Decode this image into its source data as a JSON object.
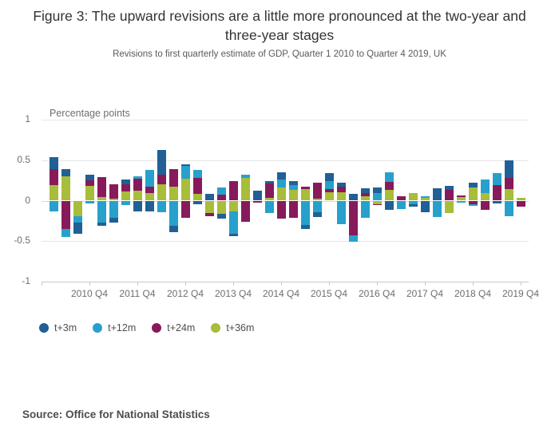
{
  "header": {
    "title": "Figure 3: The upward revisions are a little more pronounced at the two-year and three-year stages",
    "subtitle": "Revisions to first quarterly estimate of GDP, Quarter 1 2010 to Quarter 4 2019, UK"
  },
  "footer": {
    "source": "Source: Office for National Statistics"
  },
  "chart_data": {
    "type": "bar",
    "stacked": true,
    "title": "Figure 3: The upward revisions are a little more pronounced at the two-year and three-year stages",
    "subtitle": "Revisions to first quarterly estimate of GDP, Quarter 1 2010 to Quarter 4 2019, UK",
    "axis_title": "Percentage points",
    "xlabel": "",
    "ylabel": "Percentage points",
    "ylim": [
      -1,
      1
    ],
    "grid": true,
    "legend_position": "bottom-left",
    "stack_order_from_axis": [
      "t+36m",
      "t+24m",
      "t+12m",
      "t+3m"
    ],
    "y_ticks": [
      {
        "label": "1",
        "value": 1
      },
      {
        "label": "0.5",
        "value": 0.5
      },
      {
        "label": "0",
        "value": 0
      },
      {
        "label": "-0.5",
        "value": -0.5
      },
      {
        "label": "-1",
        "value": -1
      }
    ],
    "x_ticks": [
      {
        "label": "2010 Q4",
        "index": 3
      },
      {
        "label": "2011 Q4",
        "index": 7
      },
      {
        "label": "2012 Q4",
        "index": 11
      },
      {
        "label": "2013 Q4",
        "index": 15
      },
      {
        "label": "2014 Q4",
        "index": 19
      },
      {
        "label": "2015 Q4",
        "index": 23
      },
      {
        "label": "2016 Q4",
        "index": 27
      },
      {
        "label": "2017 Q4",
        "index": 31
      },
      {
        "label": "2018 Q4",
        "index": 35
      },
      {
        "label": "2019 Q4",
        "index": 39
      }
    ],
    "categories": [
      "2010 Q1",
      "2010 Q2",
      "2010 Q3",
      "2010 Q4",
      "2011 Q1",
      "2011 Q2",
      "2011 Q3",
      "2011 Q4",
      "2012 Q1",
      "2012 Q2",
      "2012 Q3",
      "2012 Q4",
      "2013 Q1",
      "2013 Q2",
      "2013 Q3",
      "2013 Q4",
      "2014 Q1",
      "2014 Q2",
      "2014 Q3",
      "2014 Q4",
      "2015 Q1",
      "2015 Q2",
      "2015 Q3",
      "2015 Q4",
      "2016 Q1",
      "2016 Q2",
      "2016 Q3",
      "2016 Q4",
      "2017 Q1",
      "2017 Q2",
      "2017 Q3",
      "2017 Q4",
      "2018 Q1",
      "2018 Q2",
      "2018 Q3",
      "2018 Q4",
      "2019 Q1",
      "2019 Q2",
      "2019 Q3",
      "2019 Q4"
    ],
    "series": [
      {
        "name": "t+3m",
        "color": "#206095",
        "values": [
          0.15,
          0.09,
          -0.14,
          0.07,
          -0.04,
          -0.06,
          0.06,
          -0.13,
          -0.13,
          0.31,
          -0.08,
          0.02,
          -0.04,
          0.08,
          -0.06,
          -0.03,
          0.0,
          0.12,
          0.03,
          0.09,
          0.05,
          -0.05,
          -0.06,
          0.1,
          0.05,
          0.08,
          0.06,
          0.07,
          -0.11,
          0.0,
          -0.03,
          -0.14,
          0.15,
          0.05,
          0.0,
          0.06,
          0.0,
          -0.03,
          0.22,
          0.0
        ]
      },
      {
        "name": "t+12m",
        "color": "#27a0cc",
        "values": [
          -0.13,
          -0.1,
          -0.08,
          -0.03,
          -0.27,
          -0.21,
          -0.05,
          0.03,
          0.21,
          -0.14,
          -0.31,
          0.16,
          0.1,
          0.0,
          0.09,
          -0.28,
          0.04,
          0.0,
          -0.15,
          0.1,
          0.06,
          -0.3,
          -0.14,
          0.1,
          -0.29,
          -0.08,
          -0.21,
          0.09,
          0.12,
          -0.1,
          -0.04,
          0.02,
          -0.2,
          0.0,
          -0.02,
          -0.02,
          0.17,
          0.15,
          -0.19,
          0.0
        ]
      },
      {
        "name": "t+24m",
        "color": "#871a5b",
        "values": [
          0.2,
          -0.35,
          0.0,
          0.07,
          0.25,
          0.18,
          0.09,
          0.15,
          0.08,
          0.12,
          0.22,
          -0.21,
          0.2,
          -0.04,
          0.07,
          0.24,
          -0.26,
          -0.02,
          0.18,
          -0.22,
          -0.21,
          0.03,
          0.2,
          0.04,
          0.07,
          -0.43,
          0.04,
          -0.01,
          0.1,
          0.05,
          0.0,
          0.0,
          0.0,
          0.13,
          0.02,
          -0.04,
          -0.11,
          0.19,
          0.14,
          -0.07
        ]
      },
      {
        "name": "t+36m",
        "color": "#a8bd3a",
        "values": [
          0.19,
          0.3,
          -0.19,
          0.18,
          0.04,
          0.02,
          0.11,
          0.12,
          0.09,
          0.2,
          0.17,
          0.27,
          0.08,
          -0.15,
          -0.16,
          -0.13,
          0.28,
          0.0,
          0.03,
          0.16,
          0.13,
          0.14,
          0.02,
          0.1,
          0.1,
          0.0,
          0.05,
          -0.04,
          0.13,
          0.0,
          0.09,
          0.03,
          0.0,
          -0.15,
          0.04,
          0.16,
          0.09,
          0.0,
          0.14,
          0.03
        ]
      }
    ]
  }
}
